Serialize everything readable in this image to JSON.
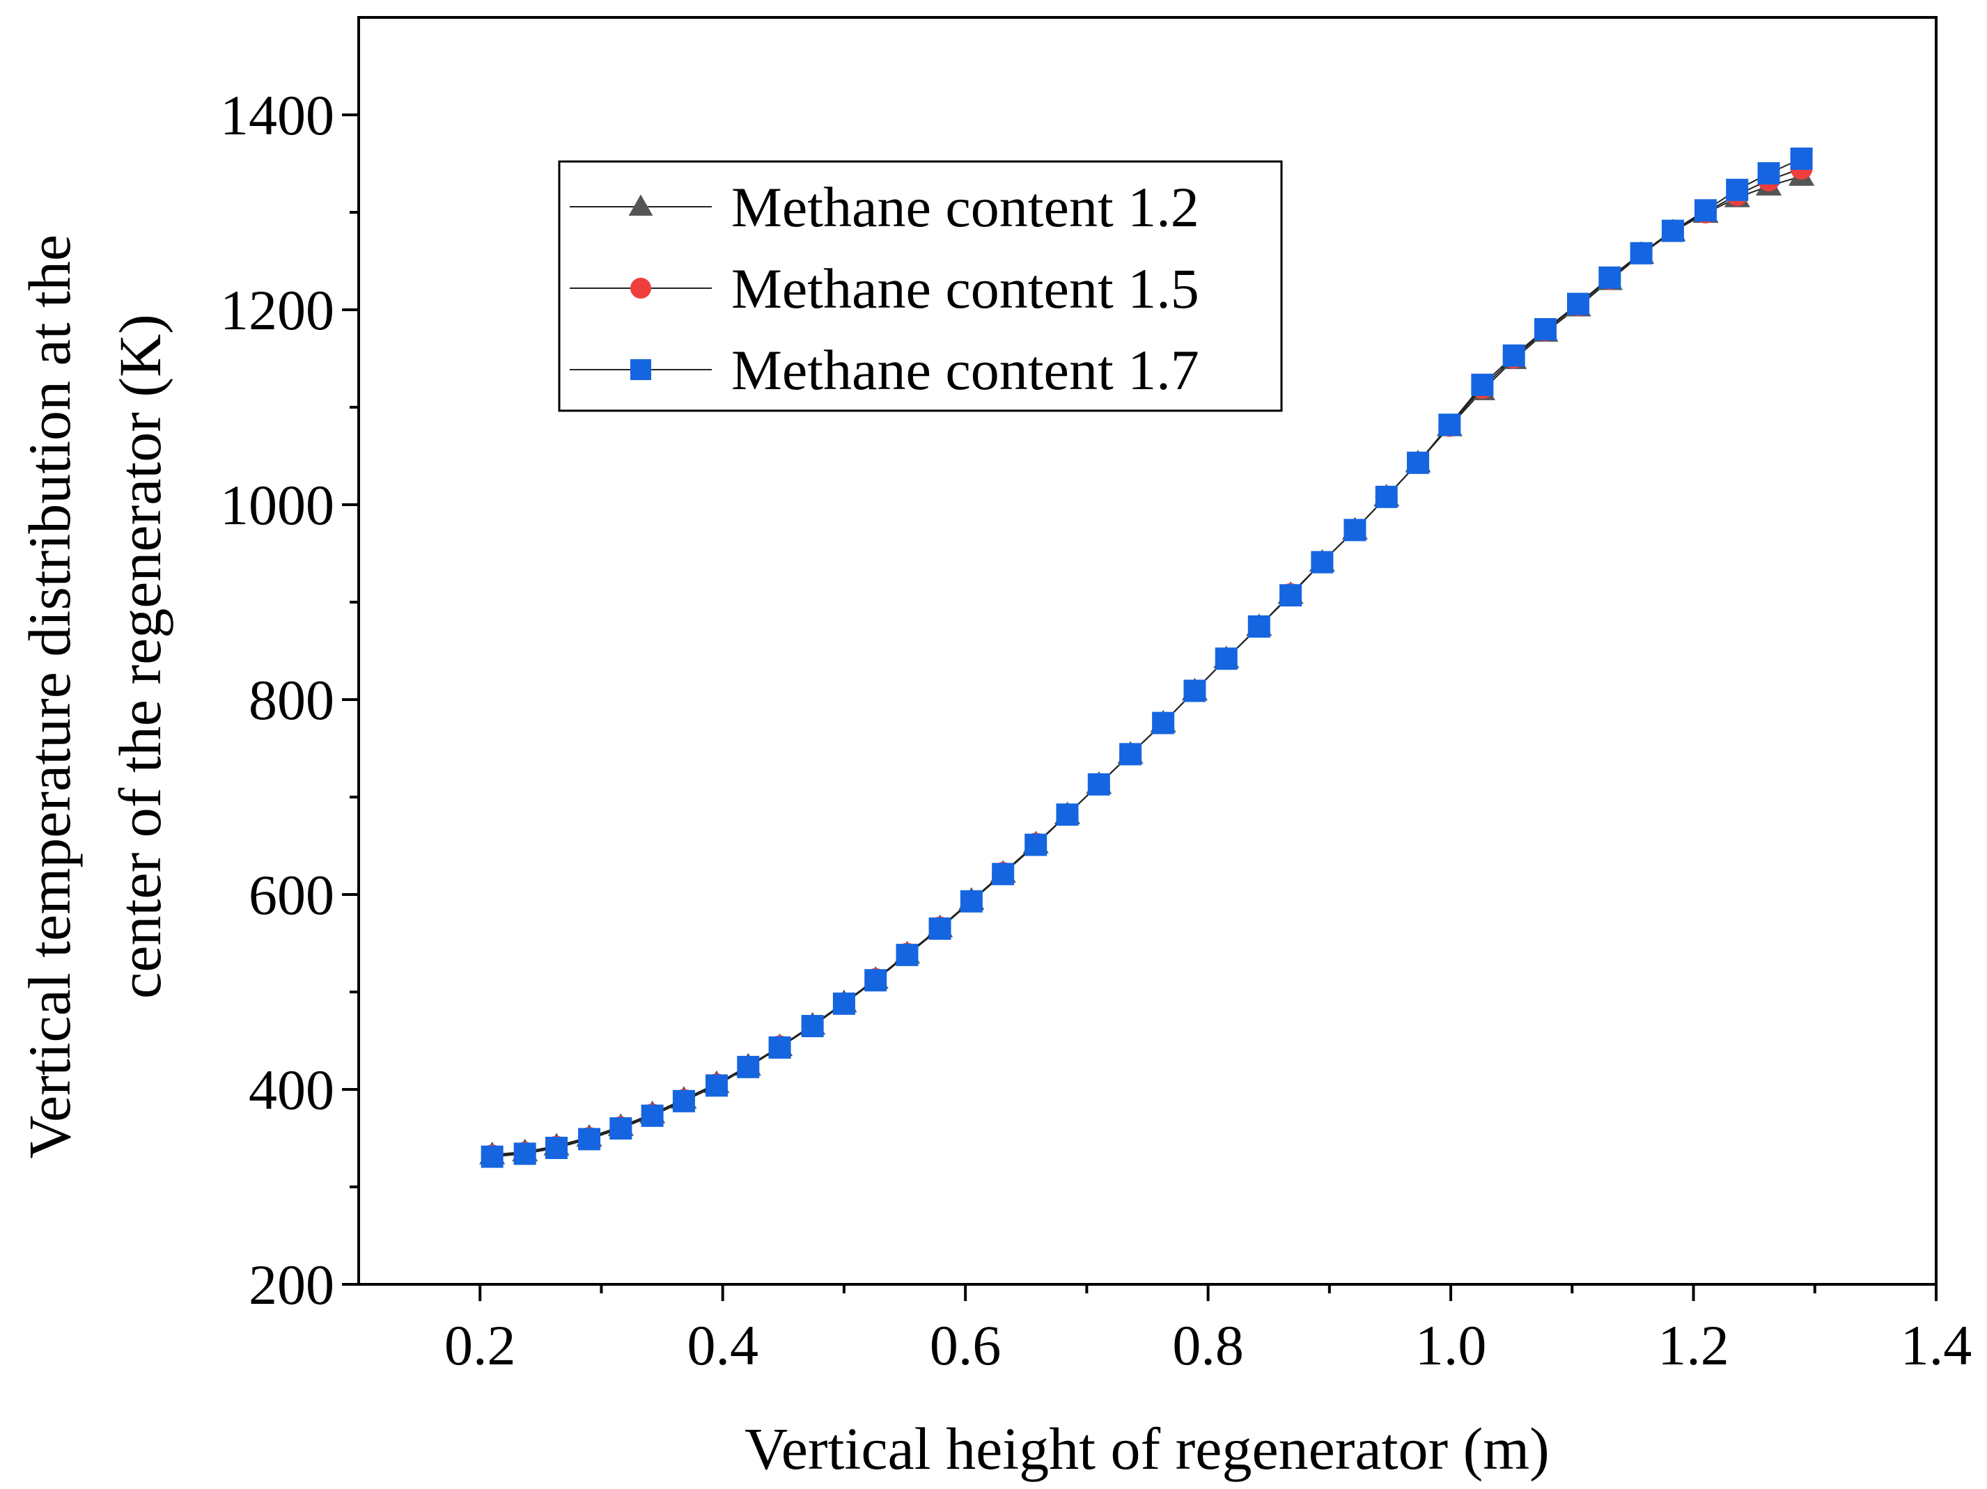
{
  "chart_data": {
    "type": "line",
    "title": "",
    "xlabel": "Vertical height of regenerator (m)",
    "ylabel_lines": [
      "Vertical temperature distribution at the",
      "center of the regenerator (K)"
    ],
    "xlim": [
      0.1,
      1.4
    ],
    "ylim": [
      200,
      1500
    ],
    "xticks": [
      0.2,
      0.4,
      0.6,
      0.8,
      1.0,
      1.2,
      1.4
    ],
    "xtick_labels": [
      "0.2",
      "0.4",
      "0.6",
      "0.8",
      "1.0",
      "1.2",
      "1.4"
    ],
    "yticks": [
      200,
      400,
      600,
      800,
      1000,
      1200,
      1400
    ],
    "ytick_labels": [
      "200",
      "400",
      "600",
      "800",
      "1000",
      "1200",
      "1400"
    ],
    "grid": false,
    "legend_position": "upper-left",
    "x": [
      0.21,
      0.237,
      0.263,
      0.29,
      0.316,
      0.342,
      0.368,
      0.395,
      0.421,
      0.447,
      0.474,
      0.5,
      0.526,
      0.552,
      0.579,
      0.605,
      0.631,
      0.658,
      0.684,
      0.71,
      0.736,
      0.763,
      0.789,
      0.815,
      0.842,
      0.868,
      0.894,
      0.921,
      0.947,
      0.973,
      0.999,
      1.026,
      1.052,
      1.078,
      1.105,
      1.131,
      1.157,
      1.183,
      1.21,
      1.236,
      1.262,
      1.289
    ],
    "series": [
      {
        "name": "Methane content 1.2",
        "marker": "triangle",
        "color": "#555555",
        "values": [
          333,
          336,
          342,
          351,
          362,
          375,
          390,
          406,
          424,
          444,
          466,
          489,
          513,
          539,
          566,
          594,
          622,
          652,
          682,
          713,
          744,
          776,
          809,
          842,
          875,
          908,
          941,
          974,
          1008,
          1043,
          1080,
          1117,
          1149,
          1177,
          1203,
          1230,
          1257,
          1280,
          1299,
          1315,
          1327,
          1337
        ]
      },
      {
        "name": "Methane content 1.5",
        "marker": "circle",
        "color": "#ef3e3e",
        "values": [
          332,
          335,
          341,
          350,
          361,
          374,
          389,
          405,
          423,
          444,
          465,
          488,
          513,
          539,
          566,
          593,
          622,
          652,
          682,
          713,
          744,
          776,
          809,
          842,
          875,
          908,
          941,
          974,
          1008,
          1043,
          1081,
          1120,
          1151,
          1179,
          1205,
          1232,
          1258,
          1281,
          1300,
          1318,
          1333,
          1345
        ]
      },
      {
        "name": "Methane content 1.7",
        "marker": "square",
        "color": "#1565e0",
        "values": [
          331,
          334,
          340,
          349,
          360,
          373,
          388,
          404,
          423,
          443,
          465,
          488,
          512,
          538,
          565,
          593,
          621,
          651,
          682,
          713,
          744,
          776,
          809,
          842,
          875,
          907,
          941,
          974,
          1008,
          1043,
          1082,
          1123,
          1153,
          1180,
          1206,
          1233,
          1258,
          1281,
          1302,
          1323,
          1340,
          1355
        ]
      }
    ]
  }
}
